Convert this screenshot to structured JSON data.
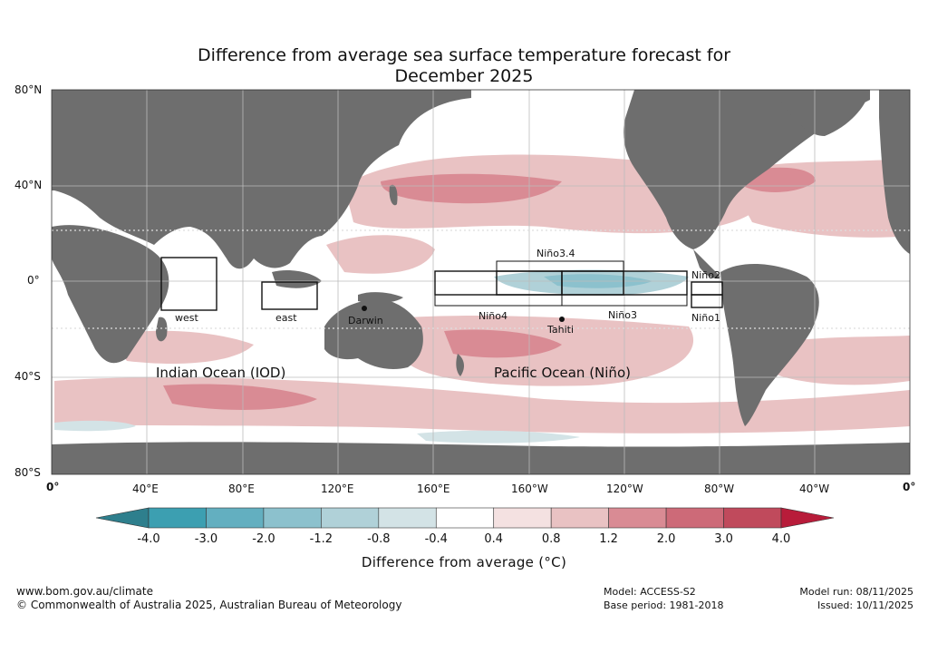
{
  "title_line1": "Difference from average sea surface temperature forecast for",
  "title_line2": "December 2025",
  "lat_labels": [
    "80°N",
    "40°N",
    "0°",
    "40°S",
    "80°S"
  ],
  "lon_labels": [
    "0°",
    "40°E",
    "80°E",
    "120°E",
    "160°E",
    "160°W",
    "120°W",
    "80°W",
    "40°W",
    "0°"
  ],
  "region_labels": {
    "west": "west",
    "east": "east",
    "darwin": "Darwin",
    "tahiti": "Tahiti",
    "nino34": "Niño3.4",
    "nino4": "Niño4",
    "nino3": "Niño3",
    "nino2": "Niño2",
    "nino1": "Niño1"
  },
  "ocean_labels": {
    "indian": "Indian Ocean (IOD)",
    "pacific": "Pacific Ocean (Niño)"
  },
  "colorbar": {
    "title": "Difference from average (°C)",
    "ticks": [
      "-4.0",
      "-3.0",
      "-2.0",
      "-1.2",
      "-0.8",
      "-0.4",
      "0.4",
      "0.8",
      "1.2",
      "2.0",
      "3.0",
      "4.0"
    ],
    "colors": [
      "#3c9fb1",
      "#63afc0",
      "#8cc1cd",
      "#b0d1d8",
      "#d3e3e6",
      "#ffffff",
      "#f4e1e1",
      "#e9c2c3",
      "#d98b94",
      "#cd6a78",
      "#c04a5c"
    ],
    "low_color": "#2e7f8d",
    "high_color": "#b81c3a"
  },
  "colors": {
    "land": "#6e6e6e",
    "ocean": "#ffffff",
    "warm": "#e9c2c3",
    "warmer": "#d98b94",
    "cool": "#b0d1d8"
  },
  "footer": {
    "url": "www.bom.gov.au/climate",
    "copyright": "© Commonwealth of Australia 2025, Australian Bureau of Meteorology",
    "model": "Model: ACCESS-S2",
    "base_period": "Base period: 1981-2018",
    "model_run": "Model run: 08/11/2025",
    "issued": "Issued: 10/11/2025"
  }
}
